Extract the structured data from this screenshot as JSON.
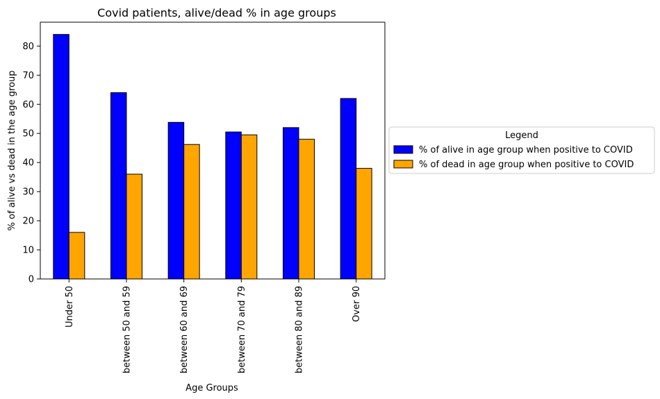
{
  "chart_data": {
    "type": "bar",
    "title": "Covid patients, alive/dead % in age groups",
    "xlabel": "Age Groups",
    "ylabel": "% of alive vs dead in the age group",
    "categories": [
      "Under 50",
      "between 50 and 59",
      "between 60 and 69",
      "between 70 and 79",
      "between 80 and 89",
      "Over 90"
    ],
    "series": [
      {
        "name": "% of alive in age group when positive to COVID",
        "color": "#0000ff",
        "values": [
          84.0,
          64.0,
          53.8,
          50.5,
          52.0,
          62.0
        ]
      },
      {
        "name": "% of dead in age group when positive to COVID",
        "color": "#ffa500",
        "values": [
          16.0,
          36.0,
          46.2,
          49.5,
          48.0,
          38.0
        ]
      }
    ],
    "ylim": [
      0,
      88.2
    ],
    "yticks": [
      0,
      10,
      20,
      30,
      40,
      50,
      60,
      70,
      80
    ],
    "grid": false,
    "legend": {
      "title": "Legend",
      "placement": "center-left, outside right of axes"
    }
  }
}
